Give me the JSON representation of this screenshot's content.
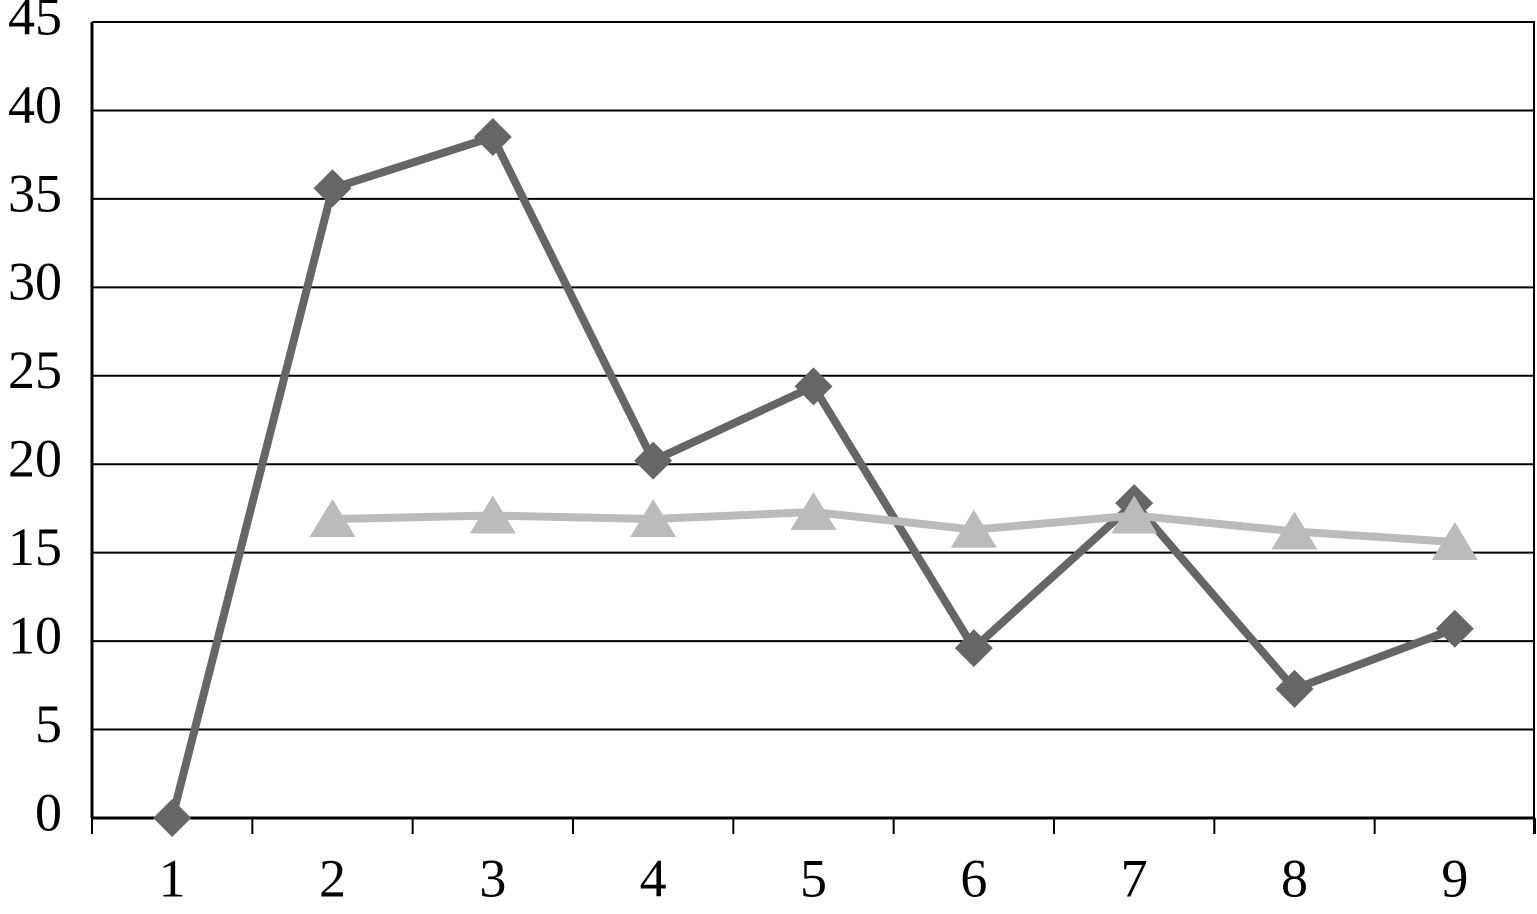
{
  "chart_data": {
    "type": "line",
    "categories": [
      "1",
      "2",
      "3",
      "4",
      "5",
      "6",
      "7",
      "8",
      "9"
    ],
    "series": [
      {
        "color": "#666666",
        "marker": "diamond",
        "values": [
          0,
          35.6,
          38.5,
          20.2,
          24.4,
          9.6,
          17.8,
          7.3,
          10.7
        ]
      },
      {
        "color": "#bbbbbb",
        "marker": "triangle",
        "values": [
          null,
          16.9,
          17.1,
          16.9,
          17.3,
          16.3,
          17.1,
          16.2,
          15.6
        ]
      }
    ],
    "ylim": [
      0,
      45
    ],
    "yticks": [
      0,
      5,
      10,
      15,
      20,
      25,
      30,
      35,
      40,
      45
    ],
    "grid": true
  }
}
